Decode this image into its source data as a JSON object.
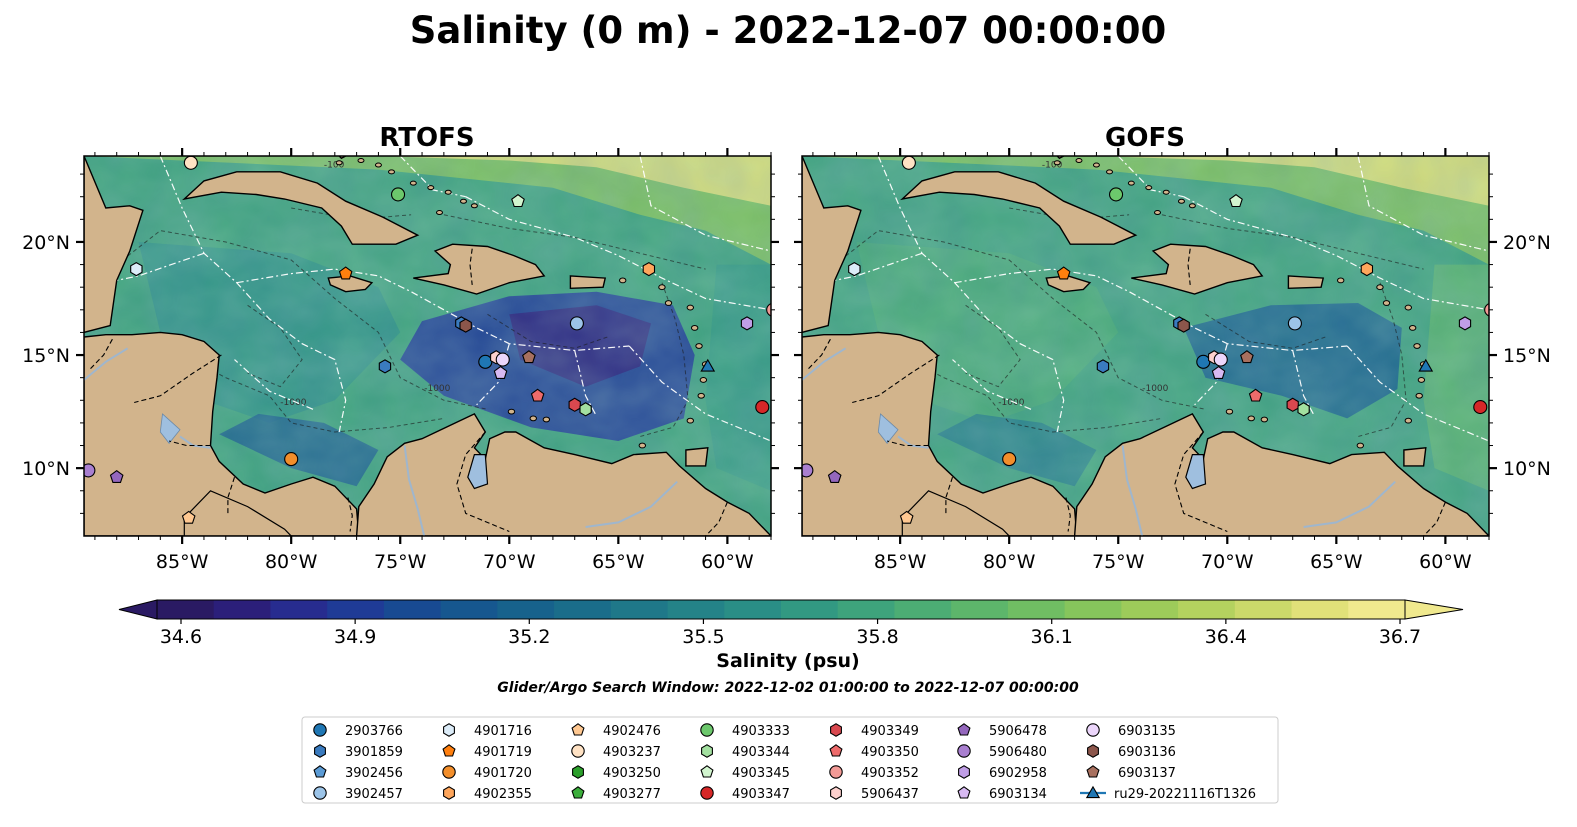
{
  "title": "Salinity (0 m) - 2022-12-07 00:00:00",
  "panels": [
    {
      "title": "RTOFS",
      "variant": "rtofs"
    },
    {
      "title": "GOFS",
      "variant": "gofs"
    }
  ],
  "axes": {
    "lon_ticks": [
      "85°W",
      "80°W",
      "75°W",
      "70°W",
      "65°W",
      "60°W"
    ],
    "lon_tick_values": [
      -85,
      -80,
      -75,
      -70,
      -65,
      -60
    ],
    "lat_ticks": [
      "20°N",
      "15°N",
      "10°N"
    ],
    "lat_tick_values": [
      20,
      15,
      10
    ],
    "lon_range": [
      -89.5,
      -58.0
    ],
    "lat_range": [
      7.0,
      23.8
    ]
  },
  "colorbar": {
    "ticks": [
      "34.6",
      "34.9",
      "35.2",
      "35.5",
      "35.8",
      "36.1",
      "36.4",
      "36.7"
    ],
    "range": [
      34.6,
      36.7
    ],
    "label": "Salinity (psu)",
    "colormap": "haline",
    "colors": [
      "#2a1a63",
      "#2b1f7a",
      "#272c8f",
      "#1f3b96",
      "#184a92",
      "#16578f",
      "#17628c",
      "#1a6d8a",
      "#1f7889",
      "#248388",
      "#2a8e86",
      "#329982",
      "#3ea37c",
      "#4cad74",
      "#5db66b",
      "#70be63",
      "#86c55c",
      "#9dcb5a",
      "#b4d25f",
      "#cbd96a",
      "#e1e179",
      "#f0e98e"
    ]
  },
  "search_window": "Glider/Argo Search Window: 2022-12-02 01:00:00 to 2022-12-07 00:00:00",
  "legend": [
    {
      "id": "2903766",
      "marker": "circle",
      "color": "#1f77b4"
    },
    {
      "id": "3901859",
      "marker": "hexagon",
      "color": "#3a7bbf"
    },
    {
      "id": "3902456",
      "marker": "pentagon",
      "color": "#5b9bd5"
    },
    {
      "id": "3902457",
      "marker": "circle",
      "color": "#9cc4e8"
    },
    {
      "id": "4901716",
      "marker": "hexagon",
      "color": "#dcecf8"
    },
    {
      "id": "4901719",
      "marker": "pentagon",
      "color": "#ff7f0e"
    },
    {
      "id": "4901720",
      "marker": "circle",
      "color": "#f28e2b"
    },
    {
      "id": "4902355",
      "marker": "hexagon",
      "color": "#ffa65c"
    },
    {
      "id": "4902476",
      "marker": "pentagon",
      "color": "#ffc891"
    },
    {
      "id": "4903237",
      "marker": "circle",
      "color": "#ffe2c4"
    },
    {
      "id": "4903250",
      "marker": "hexagon",
      "color": "#2ca02c"
    },
    {
      "id": "4903277",
      "marker": "pentagon",
      "color": "#3cae3c"
    },
    {
      "id": "4903333",
      "marker": "circle",
      "color": "#6cc86c"
    },
    {
      "id": "4903344",
      "marker": "hexagon",
      "color": "#a3e0a0"
    },
    {
      "id": "4903345",
      "marker": "pentagon",
      "color": "#d2f5cf"
    },
    {
      "id": "4903347",
      "marker": "circle",
      "color": "#d62728"
    },
    {
      "id": "4903349",
      "marker": "hexagon",
      "color": "#d9484f"
    },
    {
      "id": "4903350",
      "marker": "pentagon",
      "color": "#ee6b6b"
    },
    {
      "id": "4903352",
      "marker": "circle",
      "color": "#f29a96"
    },
    {
      "id": "5906437",
      "marker": "hexagon",
      "color": "#fcd0cd"
    },
    {
      "id": "5906478",
      "marker": "pentagon",
      "color": "#9467bd"
    },
    {
      "id": "5906480",
      "marker": "circle",
      "color": "#a97fd0"
    },
    {
      "id": "6902958",
      "marker": "hexagon",
      "color": "#c09ee6"
    },
    {
      "id": "6903134",
      "marker": "pentagon",
      "color": "#d7b9f2"
    },
    {
      "id": "6903135",
      "marker": "circle",
      "color": "#ecd6fb"
    },
    {
      "id": "6903136",
      "marker": "hexagon",
      "color": "#8c564b"
    },
    {
      "id": "6903137",
      "marker": "pentagon",
      "color": "#a8705f"
    },
    {
      "id": "ru29-20221116T1326",
      "marker": "triangle",
      "color": "#1f77b4",
      "line": true
    }
  ],
  "floats": [
    {
      "lon": -84.6,
      "lat": 23.5,
      "marker": "circle",
      "color": "#ffe2c4"
    },
    {
      "lon": -75.1,
      "lat": 22.1,
      "marker": "circle",
      "color": "#6cc86c"
    },
    {
      "lon": -69.6,
      "lat": 21.8,
      "marker": "pentagon",
      "color": "#d2f5cf"
    },
    {
      "lon": -87.1,
      "lat": 18.8,
      "marker": "hexagon",
      "color": "#dcecf8"
    },
    {
      "lon": -77.5,
      "lat": 18.6,
      "marker": "pentagon",
      "color": "#ff7f0e"
    },
    {
      "lon": -63.6,
      "lat": 18.8,
      "marker": "hexagon",
      "color": "#ffa65c"
    },
    {
      "lon": -72.2,
      "lat": 16.4,
      "marker": "hexagon",
      "color": "#3a7bbf"
    },
    {
      "lon": -72.0,
      "lat": 16.3,
      "marker": "hexagon",
      "color": "#8c564b"
    },
    {
      "lon": -66.9,
      "lat": 16.4,
      "marker": "circle",
      "color": "#9cc4e8"
    },
    {
      "lon": -59.1,
      "lat": 16.4,
      "marker": "hexagon",
      "color": "#c09ee6"
    },
    {
      "lon": -57.9,
      "lat": 17.0,
      "marker": "circle",
      "color": "#f29a96"
    },
    {
      "lon": -75.7,
      "lat": 14.5,
      "marker": "hexagon",
      "color": "#3a7bbf"
    },
    {
      "lon": -71.1,
      "lat": 14.7,
      "marker": "circle",
      "color": "#1f77b4"
    },
    {
      "lon": -70.6,
      "lat": 14.9,
      "marker": "hexagon",
      "color": "#fcd0cd"
    },
    {
      "lon": -70.3,
      "lat": 14.8,
      "marker": "circle",
      "color": "#ecd6fb"
    },
    {
      "lon": -70.4,
      "lat": 14.2,
      "marker": "pentagon",
      "color": "#d7b9f2"
    },
    {
      "lon": -69.1,
      "lat": 14.9,
      "marker": "pentagon",
      "color": "#a8705f"
    },
    {
      "lon": -68.7,
      "lat": 13.2,
      "marker": "pentagon",
      "color": "#ee6b6b"
    },
    {
      "lon": -67.0,
      "lat": 12.8,
      "marker": "hexagon",
      "color": "#d9484f"
    },
    {
      "lon": -66.5,
      "lat": 12.6,
      "marker": "hexagon",
      "color": "#a3e0a0"
    },
    {
      "lon": -58.4,
      "lat": 12.7,
      "marker": "circle",
      "color": "#d62728"
    },
    {
      "lon": -80.0,
      "lat": 10.4,
      "marker": "circle",
      "color": "#f28e2b"
    },
    {
      "lon": -89.3,
      "lat": 9.9,
      "marker": "circle",
      "color": "#a97fd0"
    },
    {
      "lon": -88.0,
      "lat": 9.6,
      "marker": "pentagon",
      "color": "#9467bd"
    },
    {
      "lon": -84.7,
      "lat": 7.8,
      "marker": "pentagon",
      "color": "#ffc891"
    },
    {
      "lon": -60.9,
      "lat": 14.5,
      "marker": "triangle",
      "color": "#1f77b4"
    }
  ],
  "contour_label": "-1000",
  "contour_label_top": "-100",
  "land_color": "#d2b48c",
  "lake_color": "#9fbfdf",
  "river_color": "#9fb6cd"
}
